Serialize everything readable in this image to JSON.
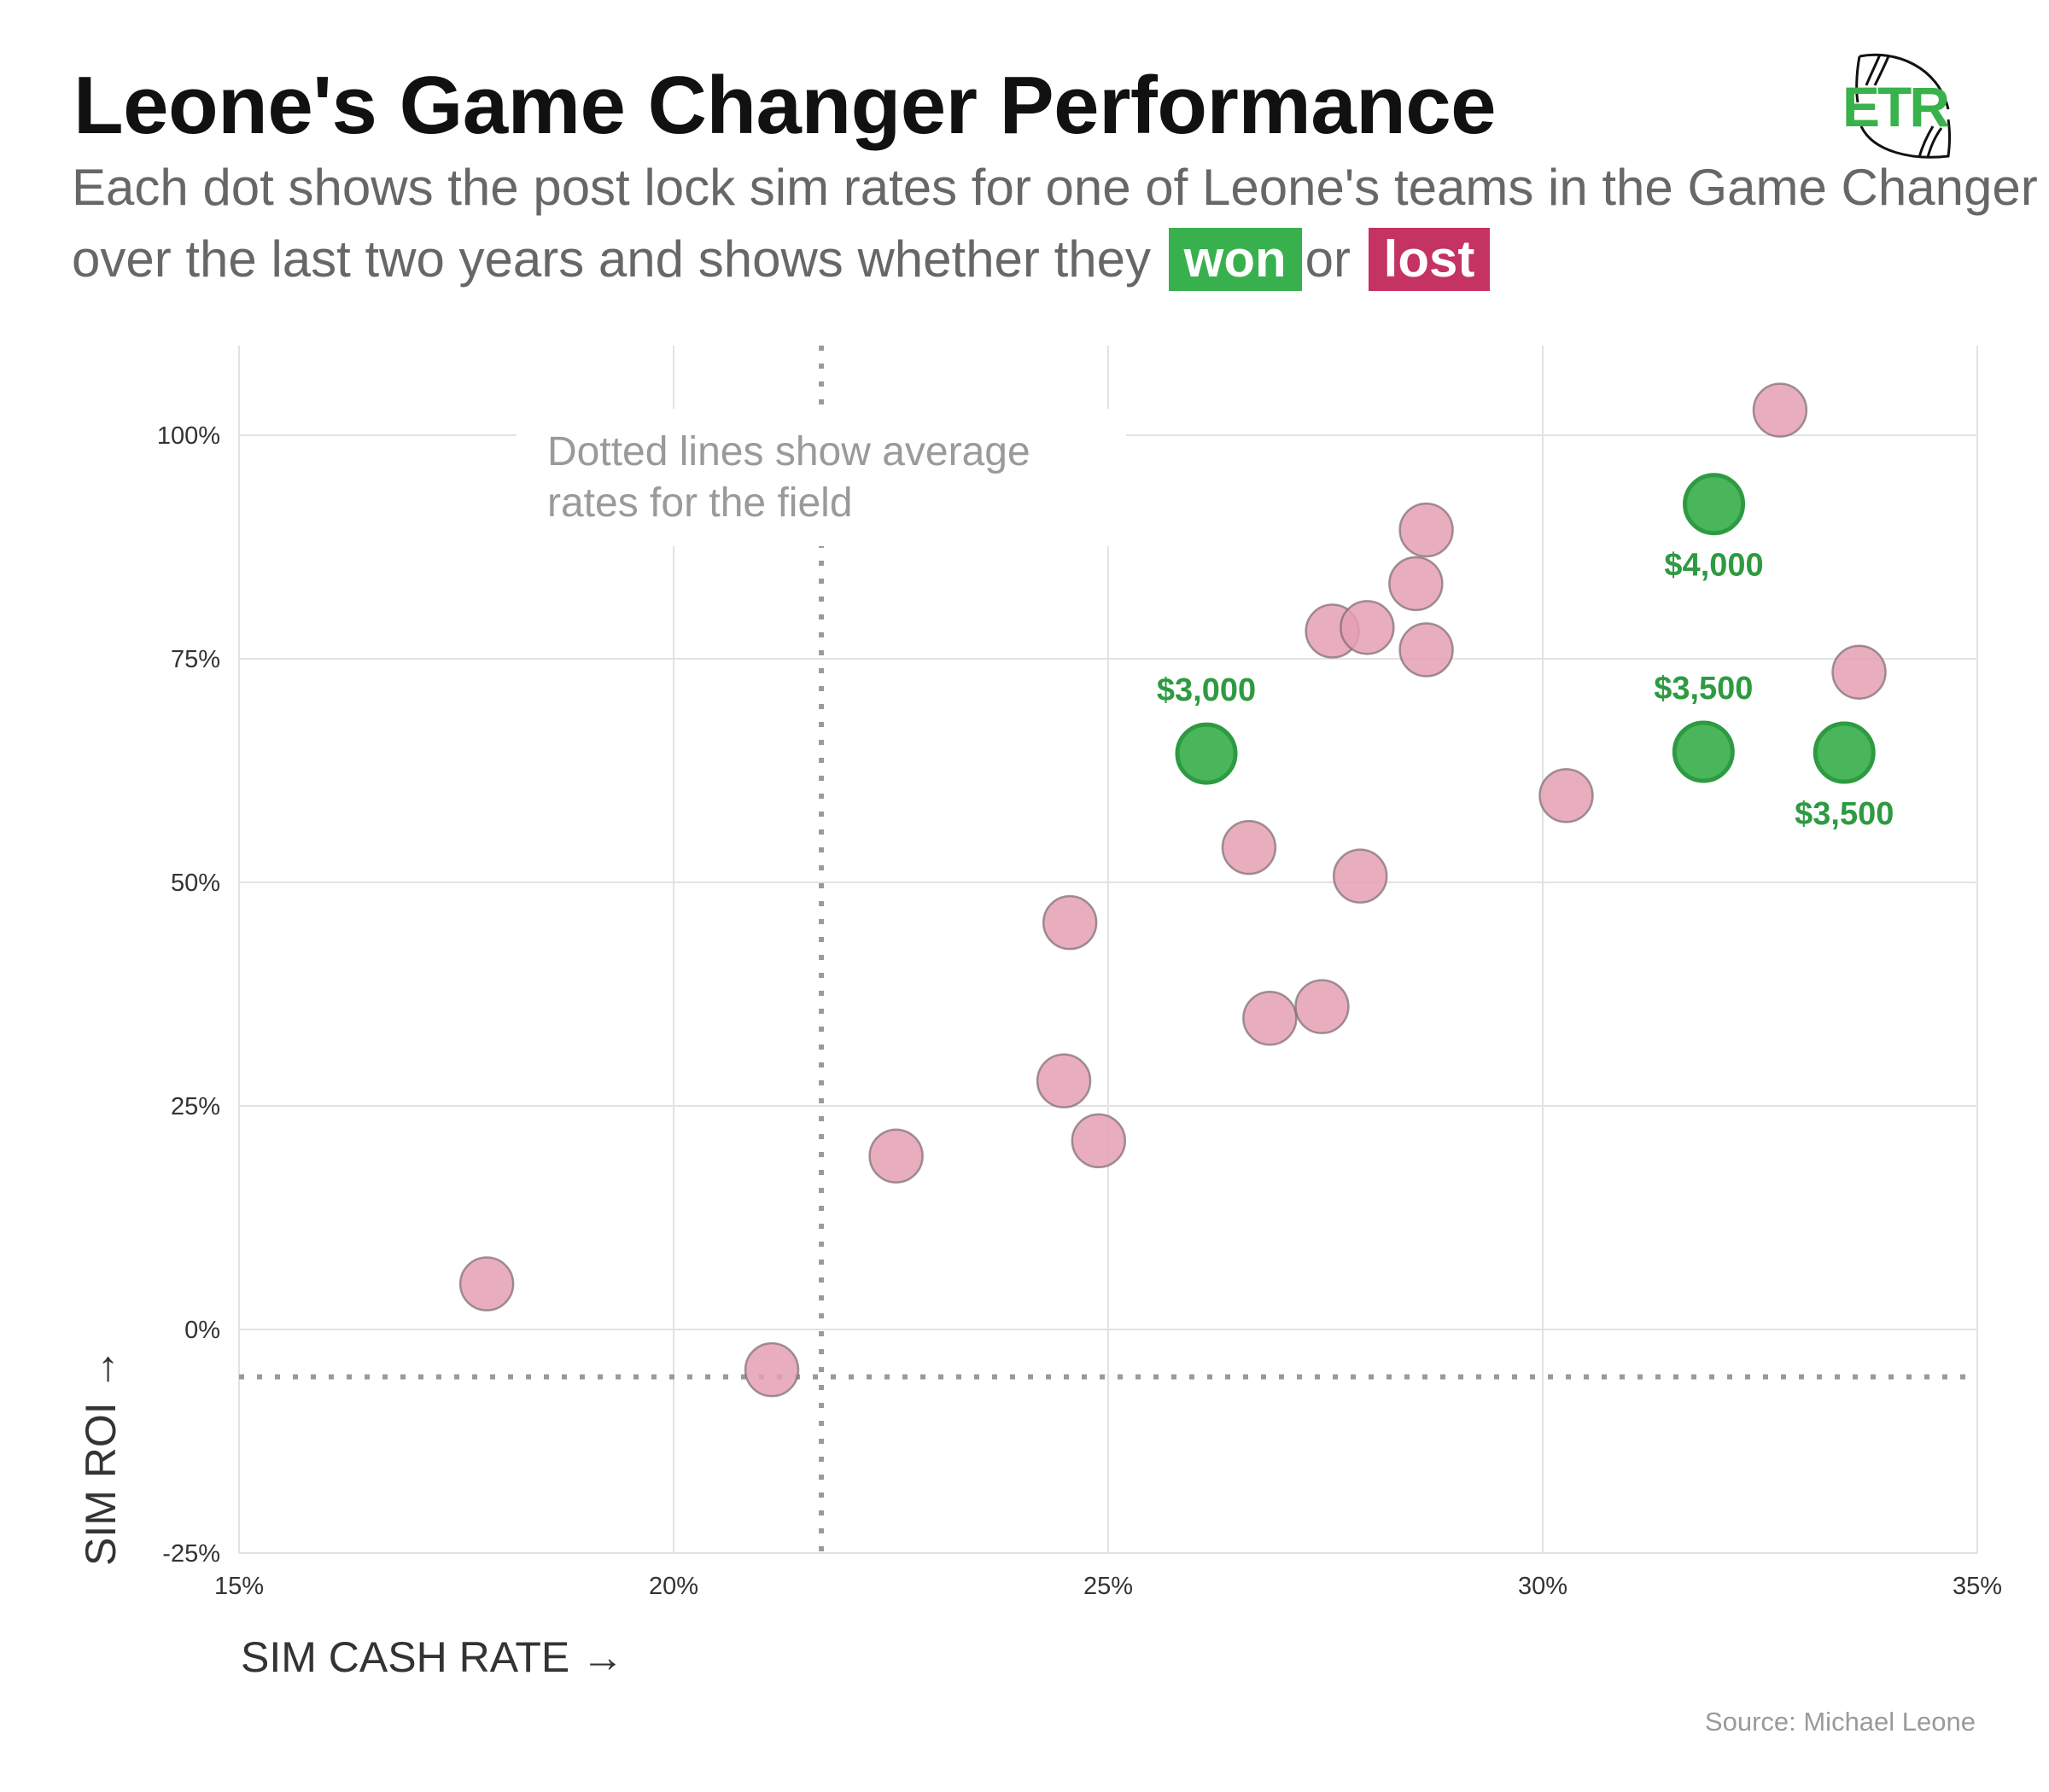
{
  "header": {
    "title": "Leone's Game Changer Performance",
    "subtitle_line1": "Each dot shows the post lock sim rates for one of Leone's teams in the Game Changer",
    "subtitle_line2_prefix": "over the last two years and shows whether they",
    "won_label": "won",
    "or_word": "or",
    "lost_label": "lost",
    "logo_text": "ETR",
    "logo_icon": "football-icon"
  },
  "colors": {
    "won": "#39b04e",
    "lost": "#c43362",
    "won_dot_fill": "#4ab65c",
    "won_dot_stroke": "#2e9a41",
    "lost_dot_fill": "#e4a0b3",
    "lost_dot_stroke": "#7a6a70",
    "label_green": "#2e9a41",
    "logo_green": "#38b24a"
  },
  "footer": {
    "source": "Source: Michael Leone"
  },
  "chart_data": {
    "type": "scatter",
    "title": "Leone's Game Changer Performance",
    "xlabel": "SIM CASH RATE",
    "xlabel_arrow": "→",
    "ylabel": "SIM ROI",
    "ylabel_arrow": "→",
    "xlim": [
      15,
      35
    ],
    "ylim": [
      -25,
      110
    ],
    "x_ticks": [
      15,
      20,
      25,
      30,
      35
    ],
    "x_tick_labels": [
      "15%",
      "20%",
      "25%",
      "30%",
      "35%"
    ],
    "y_ticks": [
      -25,
      0,
      25,
      50,
      75,
      100
    ],
    "y_tick_labels": [
      "-25%",
      "0%",
      "25%",
      "50%",
      "75%",
      "100%"
    ],
    "grid": true,
    "reference_lines": {
      "field_avg_cash_rate": 21.7,
      "field_avg_roi": -5.3,
      "style": "dotted"
    },
    "annotation": {
      "line1": "Dotted lines show average",
      "line2": "rates for the field",
      "x": 16.75,
      "y": 100
    },
    "series": [
      {
        "name": "lost",
        "points": [
          {
            "x": 17.85,
            "y": 5.1
          },
          {
            "x": 21.13,
            "y": -4.5
          },
          {
            "x": 22.56,
            "y": 19.4
          },
          {
            "x": 24.49,
            "y": 27.8
          },
          {
            "x": 24.89,
            "y": 21.1
          },
          {
            "x": 24.56,
            "y": 45.5
          },
          {
            "x": 26.62,
            "y": 53.9
          },
          {
            "x": 26.86,
            "y": 34.8
          },
          {
            "x": 27.46,
            "y": 36.1
          },
          {
            "x": 27.9,
            "y": 50.7
          },
          {
            "x": 27.58,
            "y": 78.1
          },
          {
            "x": 27.98,
            "y": 78.5
          },
          {
            "x": 28.54,
            "y": 83.4
          },
          {
            "x": 28.66,
            "y": 89.4
          },
          {
            "x": 28.66,
            "y": 76.0
          },
          {
            "x": 30.27,
            "y": 59.7
          },
          {
            "x": 32.73,
            "y": 102.8
          },
          {
            "x": 33.64,
            "y": 73.5
          }
        ]
      },
      {
        "name": "won",
        "points": [
          {
            "x": 26.13,
            "y": 64.4,
            "label": "$3,000",
            "label_pos": "above"
          },
          {
            "x": 31.97,
            "y": 92.3,
            "label": "$4,000",
            "label_pos": "below"
          },
          {
            "x": 31.85,
            "y": 64.6,
            "label": "$3,500",
            "label_pos": "above"
          },
          {
            "x": 33.47,
            "y": 64.5,
            "label": "$3,500",
            "label_pos": "below"
          }
        ]
      }
    ]
  }
}
